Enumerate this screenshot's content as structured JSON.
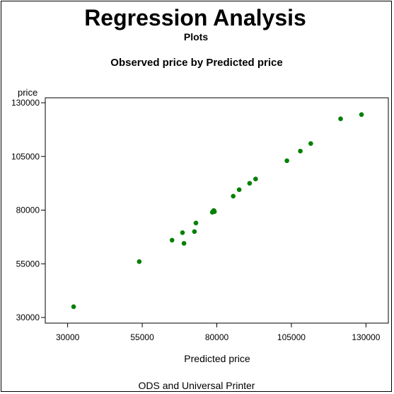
{
  "header": {
    "title": "Regression Analysis",
    "subtitle": "Plots",
    "footer": "ODS and Universal Printer"
  },
  "chart_data": {
    "type": "scatter",
    "title": "Observed price by Predicted price",
    "xlabel": "Predicted price",
    "ylabel": "price",
    "xlim": [
      22500,
      137500
    ],
    "ylim": [
      30000,
      130000
    ],
    "xticks": [
      30000,
      55000,
      80000,
      105000,
      130000
    ],
    "yticks": [
      30000,
      55000,
      80000,
      105000,
      130000
    ],
    "grid": false,
    "marker_color": "#008000",
    "series": [
      {
        "x": [
          32000,
          54000,
          65000,
          68500,
          69000,
          72500,
          73000,
          78500,
          78800,
          79000,
          79200,
          85500,
          87500,
          91000,
          93000,
          103500,
          108000,
          111500,
          121500,
          128500
        ],
        "y": [
          35000,
          56000,
          66000,
          69500,
          64500,
          70000,
          74000,
          79000,
          79500,
          79800,
          79300,
          86500,
          89500,
          92500,
          94500,
          103000,
          107500,
          111000,
          122500,
          124500
        ]
      }
    ]
  }
}
